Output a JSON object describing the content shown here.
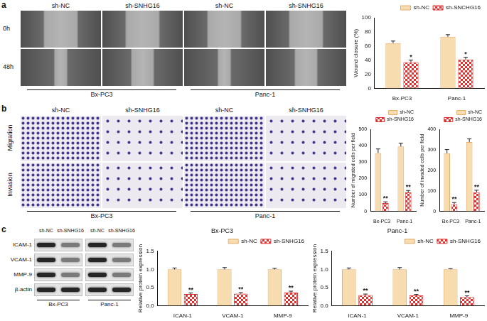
{
  "figure_panels": [
    {
      "label": "a",
      "columns": [
        "sh-NC",
        "sh-SNHG16",
        "sh-NC",
        "sh-SNHG16"
      ],
      "rows": [
        "0h",
        "48h"
      ],
      "groups": [
        "Bx-PC3",
        "Panc-1"
      ]
    },
    {
      "label": "b",
      "columns": [
        "sh-NC",
        "sh-SNHG16",
        "sh-NC",
        "sh-SNHG16"
      ],
      "rows": [
        "Migration",
        "Invasion"
      ],
      "groups": [
        "Bx-PC3",
        "Panc-1"
      ]
    },
    {
      "label": "c",
      "columns": [
        "sh-NC",
        "sh-SNHG16",
        "sh-NC",
        "sh-SNHG16"
      ],
      "rows": [
        "ICAM-1",
        "VCAM-1",
        "MMP-9",
        "β-actin"
      ],
      "groups": [
        "Bx-PC3",
        "Panc-1"
      ]
    }
  ],
  "chart_data": [
    {
      "type": "bar",
      "ylabel": "Wound closure (%)",
      "categories": [
        "Bx-PC3",
        "Panc-1"
      ],
      "series": [
        {
          "name": "sh-NC",
          "color": "#f7dcb0",
          "values": [
            64,
            73
          ],
          "errors": [
            3,
            3
          ]
        },
        {
          "name": "sh-SNCHG16",
          "color": "#e0312f",
          "values": [
            37,
            41
          ],
          "errors": [
            3,
            3
          ],
          "annotations": [
            "*",
            "*"
          ]
        }
      ],
      "ylim": [
        0,
        100
      ],
      "yticks": [
        0,
        20,
        40,
        60,
        80,
        100
      ],
      "grid": false,
      "legend": "upper right"
    },
    {
      "type": "bar",
      "ylabel": "Number of migrated cells per field",
      "categories": [
        "Bx-PC3",
        "Panc-1"
      ],
      "series": [
        {
          "name": "sh-NC",
          "color": "#f7dcb0",
          "values": [
            355,
            395
          ],
          "errors": [
            25,
            20
          ]
        },
        {
          "name": "sh-SNHG16",
          "color": "#e0312f",
          "values": [
            50,
            115
          ],
          "errors": [
            8,
            12
          ],
          "annotations": [
            "**",
            "**"
          ]
        }
      ],
      "ylim": [
        0,
        500
      ],
      "yticks": [
        0,
        100,
        200,
        300,
        400,
        500
      ],
      "grid": false,
      "legend": "upper right"
    },
    {
      "type": "bar",
      "ylabel": "Number of invaded cells per field",
      "categories": [
        "Bx-PC3",
        "Panc-1"
      ],
      "series": [
        {
          "name": "sh-NC",
          "color": "#f7dcb0",
          "values": [
            283,
            338
          ],
          "errors": [
            18,
            15
          ]
        },
        {
          "name": "sh-SNHG16",
          "color": "#e0312f",
          "values": [
            35,
            93
          ],
          "errors": [
            8,
            10
          ],
          "annotations": [
            "**",
            "**"
          ]
        }
      ],
      "ylim": [
        0,
        400
      ],
      "yticks": [
        0,
        100,
        200,
        300,
        400
      ],
      "grid": false,
      "legend": "upper right"
    },
    {
      "type": "bar",
      "title": "Bx-PC3",
      "ylabel": "Relative protein expression",
      "categories": [
        "ICAN-1",
        "VCAM-1",
        "MMP-9"
      ],
      "series": [
        {
          "name": "sh-NC",
          "color": "#f7dcb0",
          "values": [
            1.0,
            1.0,
            1.0
          ],
          "errors": [
            0.04,
            0.05,
            0.03
          ]
        },
        {
          "name": "sh-SNHG16",
          "color": "#e0312f",
          "values": [
            0.32,
            0.33,
            0.36
          ],
          "errors": [
            0.03,
            0.03,
            0.04
          ],
          "annotations": [
            "**",
            "**",
            "**"
          ]
        }
      ],
      "ylim": [
        0,
        1.5
      ],
      "yticks": [
        {
          "value": 0,
          "label": "0.0"
        },
        0.5,
        {
          "value": 1,
          "label": "1.0"
        },
        1.5
      ],
      "grid": false,
      "legend": "upper right"
    },
    {
      "type": "bar",
      "title": "Panc-1",
      "ylabel": "Relative protein expression",
      "categories": [
        "ICAN-1",
        "VCAM-1",
        "MMP-9"
      ],
      "series": [
        {
          "name": "sh-NC",
          "color": "#f7dcb0",
          "values": [
            1.0,
            1.0,
            1.0
          ],
          "errors": [
            0.04,
            0.05,
            0.02
          ]
        },
        {
          "name": "sh-SNHG16",
          "color": "#e0312f",
          "values": [
            0.29,
            0.28,
            0.24
          ],
          "errors": [
            0.03,
            0.03,
            0.03
          ],
          "annotations": [
            "**",
            "**",
            "**"
          ]
        }
      ],
      "ylim": [
        0,
        1.5
      ],
      "yticks": [
        {
          "value": 0,
          "label": "0.0"
        },
        0.5,
        {
          "value": 1,
          "label": "1.0"
        },
        1.5
      ],
      "grid": false,
      "legend": "upper right"
    }
  ]
}
